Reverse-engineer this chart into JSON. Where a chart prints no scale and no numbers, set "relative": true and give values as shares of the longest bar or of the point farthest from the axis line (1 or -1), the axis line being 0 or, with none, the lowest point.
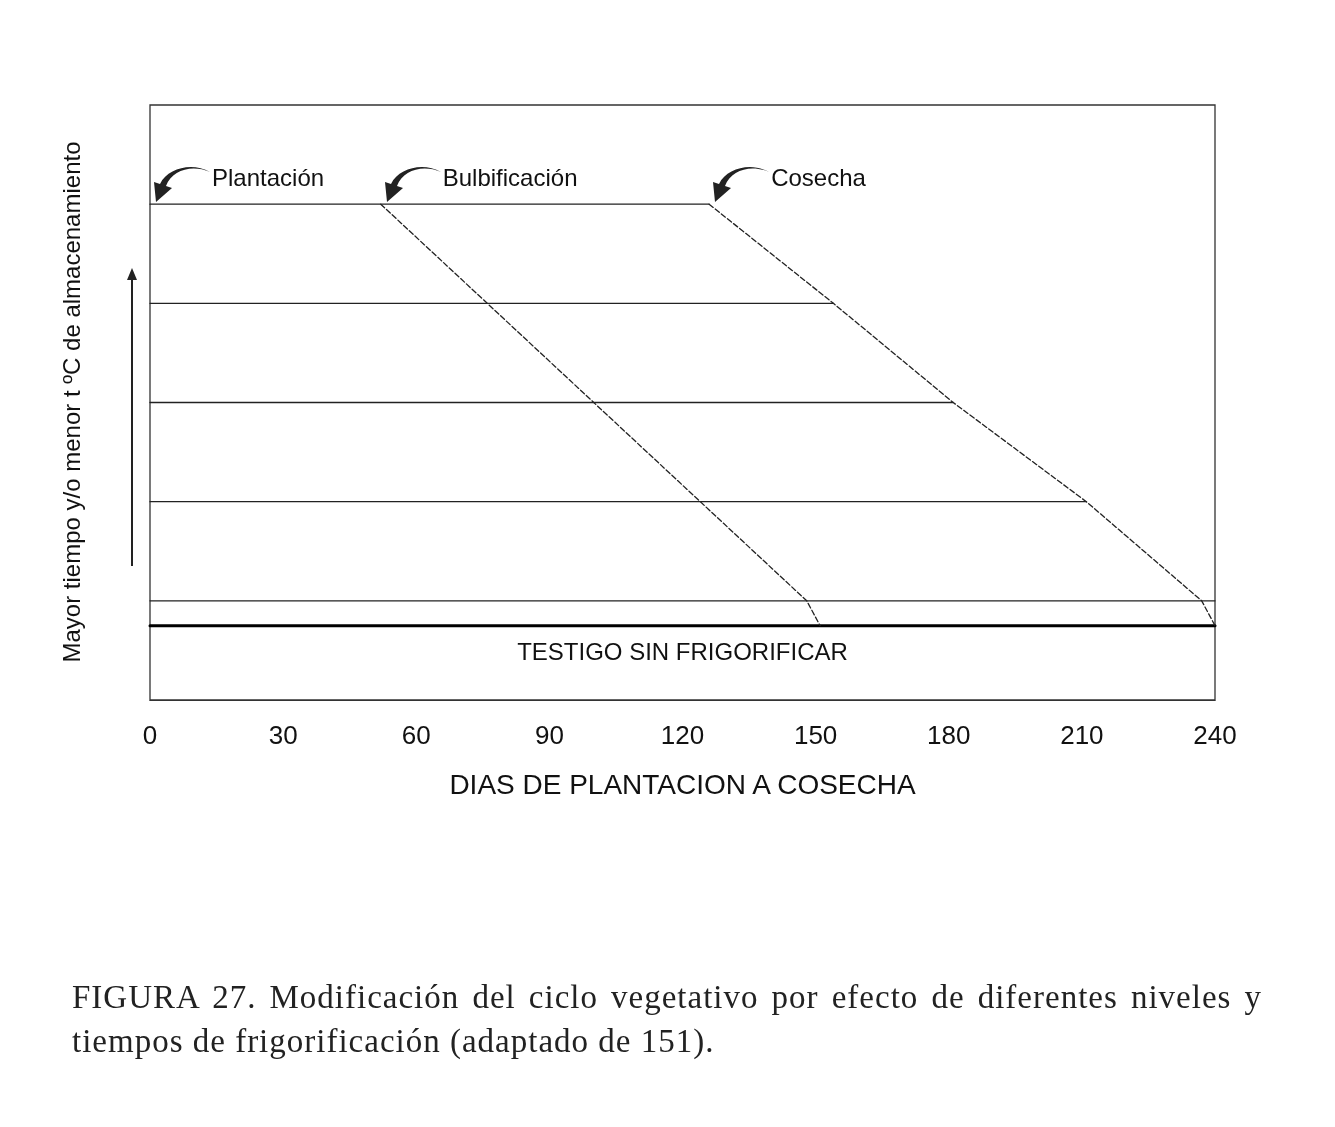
{
  "chart_data": {
    "type": "line",
    "relative": true,
    "xlabel": "DIAS DE PLANTACION A COSECHA",
    "ylabel": "Mayor tiempo y/o menor t ºC de almacenamiento",
    "xlim": [
      0,
      240
    ],
    "xticks": [
      0,
      30,
      60,
      90,
      120,
      150,
      180,
      210,
      240
    ],
    "grid": false,
    "marker": "none",
    "series": [
      {
        "color": "#222222",
        "x": [
          0,
          126
        ],
        "values": [
          1,
          1
        ]
      },
      {
        "color": "#222222",
        "x": [
          0,
          154
        ],
        "values": [
          0.8,
          0.8
        ]
      },
      {
        "color": "#222222",
        "x": [
          0,
          181
        ],
        "values": [
          0.6,
          0.6
        ]
      },
      {
        "color": "#222222",
        "x": [
          0,
          211
        ],
        "values": [
          0.4,
          0.4
        ]
      },
      {
        "color": "#222222",
        "x": [
          0,
          240
        ],
        "values": [
          0.2,
          0.2
        ]
      },
      {
        "color": "#000000",
        "x": [
          0,
          240
        ],
        "values": [
          0.15,
          0.15
        ]
      },
      {
        "color": "#222222",
        "line_style": "dashed",
        "x": [
          52,
          76,
          100,
          124,
          148,
          151
        ],
        "values": [
          1,
          0.8,
          0.6,
          0.4,
          0.2,
          0.15
        ]
      },
      {
        "color": "#222222",
        "line_style": "dashed",
        "x": [
          126,
          154,
          181,
          211,
          237,
          240
        ],
        "values": [
          1,
          0.8,
          0.6,
          0.4,
          0.2,
          0.15
        ]
      }
    ],
    "annotations": [
      {
        "text": "Plantación",
        "x": 0,
        "y": 1
      },
      {
        "text": "Bulbificación",
        "x": 52,
        "y": 1
      },
      {
        "text": "Cosecha",
        "x": 126,
        "y": 1
      },
      {
        "text": "TESTIGO SIN FRIGORIFICAR",
        "x": 120,
        "y": 0.15
      },
      "FIGURA 27. Modificación del ciclo vegetativo por efecto de diferentes niveles y tiempos de frigorificación (adaptado de 151)."
    ]
  }
}
